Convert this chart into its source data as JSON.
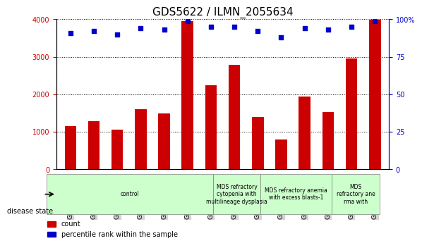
{
  "title": "GDS5622 / ILMN_2055634",
  "samples": [
    "GSM1515746",
    "GSM1515747",
    "GSM1515748",
    "GSM1515749",
    "GSM1515750",
    "GSM1515751",
    "GSM1515752",
    "GSM1515753",
    "GSM1515754",
    "GSM1515755",
    "GSM1515756",
    "GSM1515757",
    "GSM1515758",
    "GSM1515759"
  ],
  "counts": [
    1150,
    1280,
    1050,
    1600,
    1500,
    3950,
    2250,
    2780,
    1400,
    800,
    1950,
    1530,
    2950,
    3980
  ],
  "percentiles": [
    91,
    92,
    90,
    94,
    93,
    99,
    95,
    95,
    92,
    88,
    94,
    93,
    95,
    99
  ],
  "bar_color": "#cc0000",
  "dot_color": "#0000cc",
  "ylim_left": [
    0,
    4000
  ],
  "ylim_right": [
    0,
    100
  ],
  "yticks_left": [
    0,
    1000,
    2000,
    3000,
    4000
  ],
  "yticks_right": [
    0,
    25,
    50,
    75,
    100
  ],
  "disease_groups": [
    {
      "label": "control",
      "start": 0,
      "end": 7,
      "color": "#ccffcc"
    },
    {
      "label": "MDS refractory\ncytopenia with\nmultilineage dysplasia",
      "start": 7,
      "end": 9,
      "color": "#ccffcc"
    },
    {
      "label": "MDS refractory anemia\nwith excess blasts-1",
      "start": 9,
      "end": 12,
      "color": "#ccffcc"
    },
    {
      "label": "MDS\nrefractory ane\nrma with",
      "start": 12,
      "end": 14,
      "color": "#ccffcc"
    }
  ],
  "disease_state_label": "disease state",
  "legend_count": "count",
  "legend_percentile": "percentile rank within the sample",
  "title_fontsize": 11,
  "tick_fontsize": 7,
  "axis_color_left": "#cc0000",
  "axis_color_right": "#0000cc"
}
